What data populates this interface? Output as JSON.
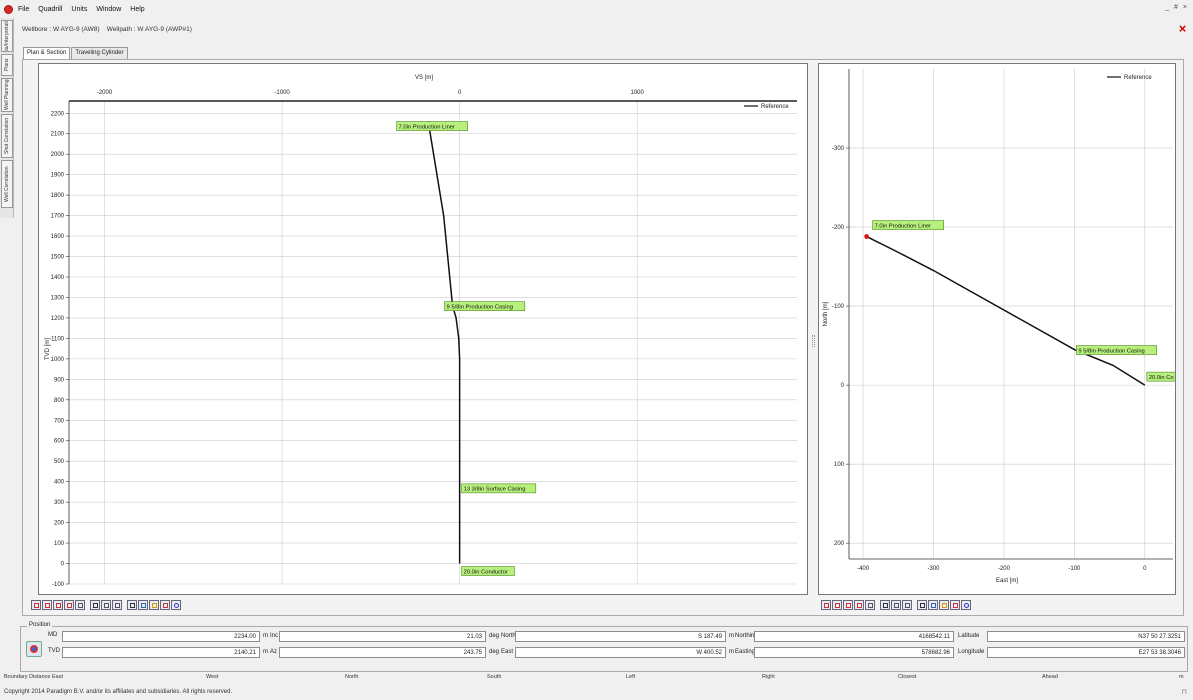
{
  "menu": [
    "File",
    "Quadrill",
    "Units",
    "Window",
    "Help"
  ],
  "window_controls": [
    "_",
    "#",
    "×"
  ],
  "side_tabs": [
    "Data/Interpretation",
    "Plans",
    "Well Planning",
    "Shot Correlation",
    "Well Correlation"
  ],
  "header": {
    "wellbore_label": "Wellbore :",
    "wellbore_value": "W AYG-9 (AW8)",
    "wellpath_label": "Wellpath :",
    "wellpath_value": "W AYG-9 (AWP#1)"
  },
  "tabs": [
    {
      "label": "Plan & Section",
      "active": true
    },
    {
      "label": "Traveling Cylinder",
      "active": false
    }
  ],
  "section_chart": {
    "x_title": "VS [m]",
    "y_title": "TVD [m]",
    "legend": "Reference",
    "x_ticks": [
      "-2000",
      "-1000",
      "0",
      "1000"
    ],
    "y_ticks": [
      "-100",
      "0",
      "100",
      "200",
      "300",
      "400",
      "500",
      "600",
      "700",
      "800",
      "900",
      "1000",
      "1100",
      "1200",
      "1300",
      "1400",
      "1500",
      "1600",
      "1700",
      "1800",
      "1900",
      "2000",
      "2100",
      "2200"
    ],
    "labels": [
      "20.0in Conductor",
      "13 3/8in Surface Casing",
      "9 5/8in Production Casing",
      "7.0in Production Liner"
    ]
  },
  "plan_chart": {
    "x_title": "East [m]",
    "y_title": "North [m]",
    "legend": "Reference",
    "x_ticks": [
      "-400",
      "-300",
      "-200",
      "-100",
      "0"
    ],
    "y_ticks": [
      "200",
      "100",
      "0",
      "-100",
      "-200",
      "-300"
    ],
    "labels": [
      "20.0in Co",
      "9 5/8in Production Casing",
      "7.0in Production Liner"
    ]
  },
  "chart_data": [
    {
      "type": "line",
      "title": "",
      "xlabel": "VS [m]",
      "ylabel": "TVD [m]",
      "xlim": [
        -2200,
        1900
      ],
      "ylim": [
        2260,
        -100
      ],
      "series": [
        {
          "name": "Reference",
          "x": [
            0,
            0,
            0,
            0,
            -5,
            -20,
            -40,
            -90,
            -175
          ],
          "y": [
            0,
            100,
            400,
            1000,
            1100,
            1200,
            1260,
            1700,
            2150
          ]
        }
      ],
      "annotations": [
        {
          "text": "20.0in Conductor",
          "x": 0,
          "y": 0
        },
        {
          "text": "13 3/8in Surface Casing",
          "x": 0,
          "y": 360
        },
        {
          "text": "9 5/8in Production Casing",
          "x": -40,
          "y": 1260
        },
        {
          "text": "7.0in Production Liner",
          "x": -175,
          "y": 2140
        }
      ]
    },
    {
      "type": "line",
      "title": "",
      "xlabel": "East [m]",
      "ylabel": "North [m]",
      "xlim": [
        -420,
        40
      ],
      "ylim": [
        -400,
        220
      ],
      "series": [
        {
          "name": "Reference",
          "x": [
            0,
            -45,
            -100,
            -170,
            -240,
            -300,
            -350,
            -395
          ],
          "y": [
            0,
            -25,
            -45,
            -80,
            -115,
            -145,
            -168,
            -188
          ]
        }
      ],
      "annotations": [
        {
          "text": "20.0in Co",
          "x": 0,
          "y": 0
        },
        {
          "text": "9 5/8in Production Casing",
          "x": -100,
          "y": -45
        },
        {
          "text": "7.0in Production Liner",
          "x": -395,
          "y": -188
        }
      ]
    }
  ],
  "toolbar_icons": [
    "zoom-in-icon",
    "zoom-out-icon",
    "zoom-fit-icon",
    "zoom-box-icon",
    "grid-icon",
    "save-icon",
    "copy-icon",
    "table-icon",
    "axes-icon",
    "anticollision-icon",
    "casing-icon",
    "chart-icon",
    "target-icon"
  ],
  "position": {
    "title": "Position",
    "md_label": "MD",
    "md_value": "2234.00",
    "md_unit": "m",
    "tvd_label": "TVD",
    "tvd_value": "2140.21",
    "tvd_unit": "m",
    "inc_label": "Inc",
    "inc_value": "21.03",
    "inc_unit": "deg",
    "az_label": "Az",
    "az_value": "243.75",
    "az_unit": "deg",
    "north_label": "North",
    "north_value": "S 187.49",
    "north_unit": "m",
    "east_label": "East",
    "east_value": "W 400.52",
    "east_unit": "m",
    "northing_label": "Northing",
    "northing_value": "4168542.11",
    "easting_label": "Easting",
    "easting_value": "578682.96",
    "latitude_label": "Latitude",
    "latitude_value": "N37 50 27.3251",
    "longitude_label": "Longitude",
    "longitude_value": "E27 53 38.3046"
  },
  "boundary": {
    "title": "Boundary Distance East",
    "cols": [
      "West",
      "North",
      "South",
      "Left",
      "Right",
      "Closest",
      "Ahead"
    ],
    "unit": "m"
  },
  "copyright": "Copyright 2014 Paradigm B.V. and/or its affiliates and subsidiaries. All rights reserved.",
  "colors": {
    "label_bg": "#b7f07c",
    "label_border": "#4a8a1a",
    "marker": "#e11111",
    "trajectory": "#111111",
    "grid": "#cccccc"
  }
}
